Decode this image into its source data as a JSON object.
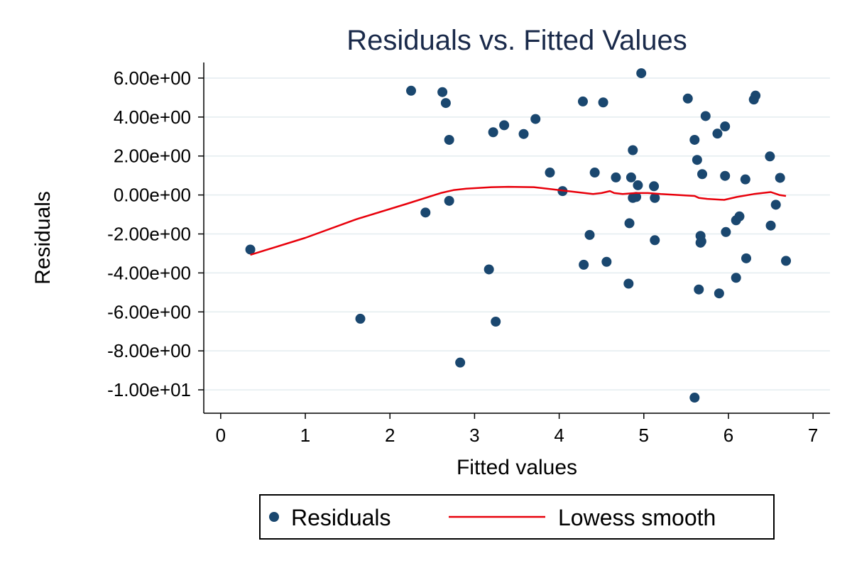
{
  "chart_data": {
    "type": "scatter",
    "title": "Residuals vs. Fitted Values",
    "xlabel": "Fitted values",
    "ylabel": "Residuals",
    "xlim": [
      -0.2,
      7.2
    ],
    "ylim": [
      -11.2,
      6.8
    ],
    "xticks": [
      0,
      1,
      2,
      3,
      4,
      5,
      6,
      7
    ],
    "xtick_labels": [
      "0",
      "1",
      "2",
      "3",
      "4",
      "5",
      "6",
      "7"
    ],
    "yticks": [
      6,
      4,
      2,
      0,
      -2,
      -4,
      -6,
      -8,
      -10
    ],
    "ytick_labels": [
      "6.00e+00",
      "4.00e+00",
      "2.00e+00",
      "0.00e+00",
      "-2.00e+00",
      "-4.00e+00",
      "-6.00e+00",
      "-8.00e+00",
      "-1.00e+01"
    ],
    "grid": "horizontal",
    "legend_position": "bottom",
    "colors": {
      "points": "#1a476f",
      "smooth": "#e8000b",
      "title": "#1a2a4a",
      "grid": "#e3ecef"
    },
    "series": [
      {
        "name": "Residuals",
        "kind": "scatter",
        "points": [
          [
            0.35,
            -2.8
          ],
          [
            1.65,
            -6.35
          ],
          [
            2.25,
            5.35
          ],
          [
            2.42,
            -0.9
          ],
          [
            2.62,
            5.28
          ],
          [
            2.66,
            4.72
          ],
          [
            2.7,
            2.83
          ],
          [
            2.7,
            -0.3
          ],
          [
            2.83,
            -8.6
          ],
          [
            3.17,
            -3.82
          ],
          [
            3.22,
            3.22
          ],
          [
            3.25,
            -6.5
          ],
          [
            3.35,
            3.58
          ],
          [
            3.58,
            3.13
          ],
          [
            3.72,
            3.9
          ],
          [
            3.89,
            1.15
          ],
          [
            4.04,
            0.2
          ],
          [
            4.28,
            4.8
          ],
          [
            4.29,
            -3.58
          ],
          [
            4.36,
            -2.05
          ],
          [
            4.42,
            1.15
          ],
          [
            4.52,
            4.75
          ],
          [
            4.56,
            -3.43
          ],
          [
            4.67,
            0.9
          ],
          [
            4.82,
            -4.55
          ],
          [
            4.83,
            -1.45
          ],
          [
            4.85,
            0.9
          ],
          [
            4.87,
            2.3
          ],
          [
            4.87,
            -0.15
          ],
          [
            4.91,
            -0.1
          ],
          [
            4.93,
            0.5
          ],
          [
            4.97,
            6.25
          ],
          [
            5.12,
            0.45
          ],
          [
            5.13,
            -0.15
          ],
          [
            5.13,
            -2.32
          ],
          [
            5.52,
            4.95
          ],
          [
            5.6,
            2.83
          ],
          [
            5.6,
            -10.4
          ],
          [
            5.63,
            1.8
          ],
          [
            5.65,
            -4.85
          ],
          [
            5.67,
            -2.1
          ],
          [
            5.67,
            -2.45
          ],
          [
            5.68,
            -2.38
          ],
          [
            5.69,
            1.07
          ],
          [
            5.73,
            4.05
          ],
          [
            5.87,
            3.15
          ],
          [
            5.89,
            -5.05
          ],
          [
            5.96,
            3.52
          ],
          [
            5.96,
            0.98
          ],
          [
            5.97,
            -1.9
          ],
          [
            6.09,
            -1.3
          ],
          [
            6.09,
            -4.25
          ],
          [
            6.13,
            -1.1
          ],
          [
            6.2,
            0.8
          ],
          [
            6.21,
            -3.25
          ],
          [
            6.3,
            4.9
          ],
          [
            6.32,
            5.1
          ],
          [
            6.49,
            1.98
          ],
          [
            6.5,
            -1.57
          ],
          [
            6.56,
            -0.5
          ],
          [
            6.61,
            0.88
          ],
          [
            6.68,
            -3.38
          ]
        ]
      },
      {
        "name": "Lowess smooth",
        "kind": "line",
        "points": [
          [
            0.35,
            -3.07
          ],
          [
            1,
            -2.2
          ],
          [
            1.6,
            -1.25
          ],
          [
            2.2,
            -0.45
          ],
          [
            2.6,
            0.1
          ],
          [
            2.75,
            0.25
          ],
          [
            2.9,
            0.32
          ],
          [
            3.2,
            0.4
          ],
          [
            3.4,
            0.42
          ],
          [
            3.7,
            0.4
          ],
          [
            4.0,
            0.25
          ],
          [
            4.1,
            0.2
          ],
          [
            4.3,
            0.1
          ],
          [
            4.4,
            0.05
          ],
          [
            4.5,
            0.1
          ],
          [
            4.6,
            0.2
          ],
          [
            4.65,
            0.1
          ],
          [
            4.75,
            0.05
          ],
          [
            4.9,
            0.1
          ],
          [
            5.05,
            0.1
          ],
          [
            5.2,
            0.05
          ],
          [
            5.4,
            0.0
          ],
          [
            5.6,
            -0.05
          ],
          [
            5.65,
            -0.15
          ],
          [
            5.75,
            -0.2
          ],
          [
            5.95,
            -0.25
          ],
          [
            6.1,
            -0.1
          ],
          [
            6.3,
            0.05
          ],
          [
            6.5,
            0.15
          ],
          [
            6.6,
            0.0
          ],
          [
            6.68,
            -0.05
          ]
        ]
      }
    ]
  }
}
